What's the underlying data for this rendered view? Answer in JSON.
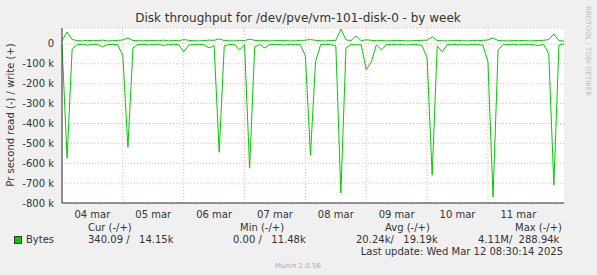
{
  "chart_data": {
    "type": "line",
    "title": "Disk throughput for /dev/pve/vm-101-disk-0 - by week",
    "y_label": "Pr second read (-) / write (+)",
    "categories": [
      null,
      null,
      null,
      null,
      null,
      null,
      "04 mar",
      null,
      null,
      null,
      null,
      null,
      null,
      null,
      null,
      null,
      null,
      null,
      "05 mar",
      null,
      null,
      null,
      null,
      null,
      null,
      null,
      null,
      null,
      null,
      null,
      "06 mar",
      null,
      null,
      null,
      null,
      null,
      null,
      null,
      null,
      null,
      null,
      null,
      "07 mar",
      null,
      null,
      null,
      null,
      null,
      null,
      null,
      null,
      null,
      null,
      null,
      "08 mar",
      null,
      null,
      null,
      null,
      null,
      null,
      null,
      null,
      null,
      null,
      null,
      "09 mar",
      null,
      null,
      null,
      null,
      null,
      null,
      null,
      null,
      null,
      null,
      null,
      "10 mar",
      null,
      null,
      null,
      null,
      null,
      null,
      null,
      null,
      null,
      null,
      null,
      "11 mar",
      null,
      null,
      null,
      null,
      null,
      null,
      null,
      null,
      null
    ],
    "series": [
      {
        "name": "Bytes",
        "color": "#00cc00",
        "read": [
          -3000,
          -575000,
          -25000,
          -4000,
          -2000,
          -6000,
          -3000,
          -2000,
          -15000,
          -3000,
          -2000,
          -4000,
          -60000,
          -520000,
          -20000,
          -3000,
          -2000,
          -5000,
          -3000,
          -2000,
          -8000,
          -3000,
          -2000,
          -4000,
          -40000,
          -6000,
          -3000,
          -2000,
          -5000,
          -20000,
          -8000,
          -545000,
          -10000,
          -3000,
          -2000,
          -30000,
          -4000,
          -625000,
          -15000,
          -3000,
          -20000,
          -2000,
          -4000,
          -3000,
          -6000,
          -2000,
          -3000,
          -4000,
          -60000,
          -560000,
          -90000,
          -4000,
          -2000,
          -3000,
          -10000,
          -750000,
          -20000,
          -3000,
          -5000,
          -4000,
          -130000,
          -90000,
          -5000,
          -30000,
          -3000,
          -2000,
          -4000,
          -3000,
          -6000,
          -2000,
          -3000,
          -8000,
          -70000,
          -660000,
          -10000,
          -40000,
          -3000,
          -2000,
          -4000,
          -3000,
          -5000,
          -2000,
          -3000,
          -6000,
          -90000,
          -770000,
          -30000,
          -4000,
          -3000,
          -2000,
          -5000,
          -3000,
          -2000,
          -4000,
          -8000,
          -3000,
          -50000,
          -710000,
          -6000,
          -340
        ],
        "write": [
          16000,
          60000,
          22000,
          17000,
          15000,
          18000,
          16000,
          17000,
          19000,
          15000,
          16000,
          18000,
          20000,
          30000,
          17000,
          16000,
          15000,
          18000,
          17000,
          16000,
          19000,
          15000,
          17000,
          16000,
          22000,
          18000,
          16000,
          15000,
          17000,
          19000,
          18000,
          25000,
          17000,
          16000,
          15000,
          18000,
          17000,
          24000,
          18000,
          16000,
          17000,
          15000,
          16000,
          18000,
          17000,
          15000,
          16000,
          17000,
          19000,
          22000,
          18000,
          16000,
          15000,
          17000,
          18000,
          75000,
          20000,
          17000,
          40000,
          16000,
          21000,
          18000,
          16000,
          17000,
          15000,
          16000,
          18000,
          17000,
          15000,
          16000,
          17000,
          18000,
          19000,
          35000,
          17000,
          16000,
          15000,
          17000,
          18000,
          16000,
          15000,
          17000,
          16000,
          18000,
          20000,
          30000,
          17000,
          16000,
          15000,
          17000,
          16000,
          18000,
          15000,
          16000,
          17000,
          18000,
          22000,
          50000,
          17000,
          14150
        ]
      }
    ],
    "ylim": [
      -800000,
      80000
    ],
    "yticks": [
      {
        "value": -800000,
        "label": "-800 k"
      },
      {
        "value": -700000,
        "label": "-700 k"
      },
      {
        "value": -600000,
        "label": "-600 k"
      },
      {
        "value": -500000,
        "label": "-500 k"
      },
      {
        "value": -400000,
        "label": "-400 k"
      },
      {
        "value": -300000,
        "label": "-300 k"
      },
      {
        "value": -200000,
        "label": "-200 k"
      },
      {
        "value": -100000,
        "label": "-100 k"
      },
      0
    ],
    "grid": true,
    "legend_stats": {
      "headers": [
        "Cur (-/+)",
        "Min (-/+)",
        "Avg (-/+)",
        "Max (-/+)"
      ],
      "values": [
        "340.09 /   14.15k",
        "0.00 /   11.48k",
        "20.24k/   19.19k",
        "4.11M/  288.94k"
      ]
    },
    "footer": "Last update: Wed Mar 12 08:30:14 2025",
    "credit": "Munin 2.0.56",
    "side_text": "RRDTOOL / TOBI OETIKER"
  }
}
